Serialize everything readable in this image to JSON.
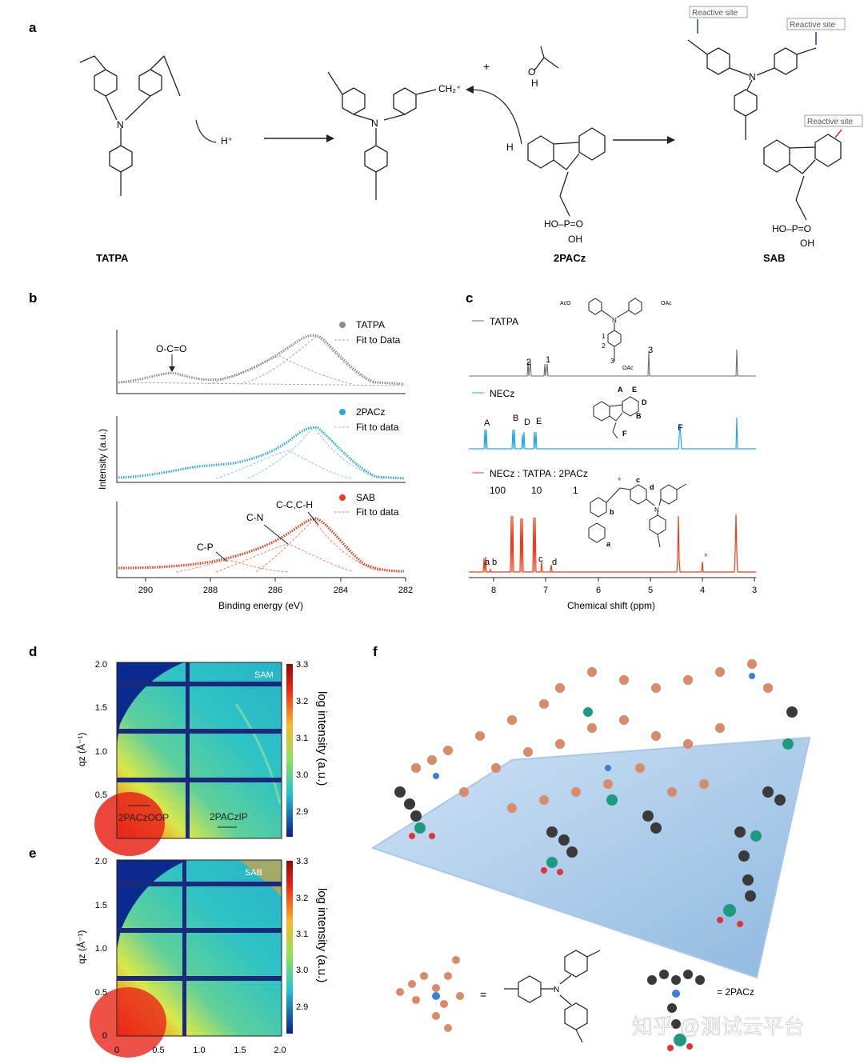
{
  "panel_letters": {
    "a": "a",
    "b": "b",
    "c": "c",
    "d": "d",
    "e": "e",
    "f": "f"
  },
  "panel_a": {
    "labels": {
      "tatpa": "TATPA",
      "twopacz": "2PACz",
      "sab": "SAB"
    },
    "reactive_site": "Reactive site",
    "proton": "H⁺",
    "carbocation": "CH₂⁺",
    "plus": "+",
    "acetic_o": "O",
    "acetic_h": "H",
    "h_atom": "H",
    "n_atom": "N",
    "phosphonic": {
      "p": "HO–P=O",
      "oh": "OH"
    }
  },
  "panel_b": {
    "y_label": "Intensity (a.u.)",
    "x_label": "Binding energy (eV)",
    "x_ticks": [
      "290",
      "288",
      "286",
      "284",
      "282"
    ],
    "traces": [
      {
        "name": "TATPA",
        "fit": "Fit to Data",
        "color": "#8c8c8c",
        "annotation": "O-C=O"
      },
      {
        "name": "2PACz",
        "fit": "Fit to data",
        "color": "#29a9e0"
      },
      {
        "name": "SAB",
        "fit": "Fit to data",
        "color": "#e8401c",
        "annotations": [
          "C-P",
          "C-N",
          "C-C,C-H"
        ]
      }
    ]
  },
  "panel_c": {
    "x_label": "Chemical shift (ppm)",
    "x_ticks": [
      "8",
      "7",
      "6",
      "5",
      "4",
      "3"
    ],
    "spectra": [
      {
        "name": "TATPA",
        "color": "#6e6e6e",
        "peaks": [
          "2",
          "1",
          "3"
        ]
      },
      {
        "name": "NECz",
        "color": "#29a9e0",
        "peaks": [
          "A",
          "B",
          "D",
          "E",
          "F"
        ]
      },
      {
        "name": "NECz : TATPA : 2PACz",
        "color": "#e8401c",
        "ratio": [
          "100",
          "10",
          "1"
        ],
        "peaks": [
          "a",
          "b",
          "c",
          "d"
        ],
        "star": "*"
      }
    ],
    "struct_labels": {
      "aco": "AcO",
      "oac": "OAc",
      "n": "N",
      "n1": "1",
      "n2": "2",
      "n3": "3",
      "A": "A",
      "B": "B",
      "D": "D",
      "E": "E",
      "F": "F",
      "a": "a",
      "b": "b",
      "c": "c",
      "d": "d"
    }
  },
  "panel_d": {
    "y_label": "qz (Å⁻¹)",
    "y_ticks": [
      "2.0",
      "1.5",
      "1.0",
      "0.5"
    ],
    "cbar_label": "log intensity (a.u.)",
    "cbar_ticks": [
      "3.3",
      "3.2",
      "3.1",
      "3.0",
      "2.9"
    ],
    "tag": "SAM",
    "oop": "2PACzOOP",
    "ip": "2PACzIP"
  },
  "panel_e": {
    "y_label": "qz (Å⁻¹)",
    "y_ticks": [
      "2.0",
      "1.5",
      "1.0",
      "0.5",
      "0"
    ],
    "x_ticks": [
      "0",
      "0.5",
      "1.0",
      "1.5",
      "2.0"
    ],
    "cbar_label": "log intensity (a.u.)",
    "cbar_ticks": [
      "3.3",
      "3.2",
      "3.1",
      "3.0",
      "2.9"
    ],
    "tag": "SAB"
  },
  "panel_f": {
    "equals": "=",
    "legend_2pacz": "= 2PACz"
  },
  "watermark": "知乎 @测试云平台"
}
